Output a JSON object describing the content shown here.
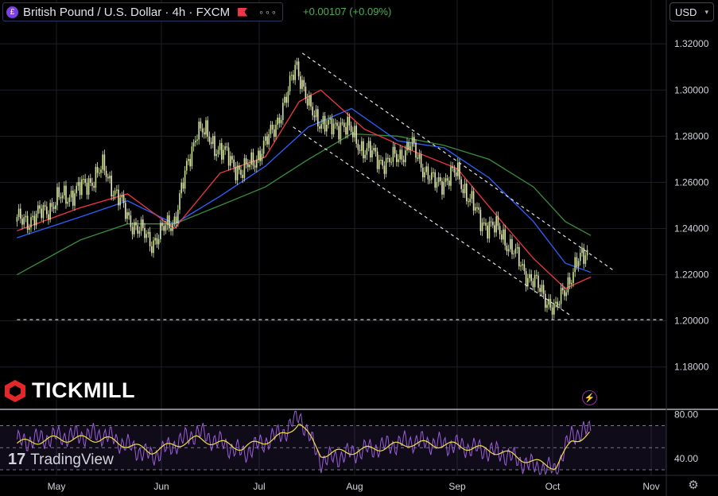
{
  "header": {
    "symbol_title": "British Pound / U.S. Dollar · 4h · FXCM",
    "symbol_icon": "pound-icon",
    "more_icon": "more-icon",
    "change": "+0.00107 (+0.09%)",
    "currency": "USD"
  },
  "branding": {
    "broker": "TICKMILL",
    "platform": "TradingView"
  },
  "colors": {
    "background": "#000000",
    "up_candle": "#c9e58c",
    "down_candle": "#e8e3b5",
    "ma_fast": "#f23645",
    "ma_mid": "#2962ff",
    "ma_slow": "#388e3c",
    "rsi_line": "#9c5ddb",
    "rsi_signal": "#f0e040",
    "change_text": "#4caf50"
  },
  "chart_data": [
    {
      "type": "line",
      "title": "British Pound / U.S. Dollar · 4h · FXCM",
      "x_axis": {
        "ticks": [
          "May",
          "Jun",
          "Jul",
          "Aug",
          "Sep",
          "Oct",
          "Nov"
        ]
      },
      "y_axis": {
        "ticks": [
          "1.32000",
          "1.30000",
          "1.28000",
          "1.26000",
          "1.24000",
          "1.22000",
          "1.20000",
          "1.18000"
        ],
        "range": [
          1.162,
          1.339
        ]
      },
      "series": [
        {
          "role": "close",
          "x": [
            "Apr 19",
            "Apr 25",
            "May 1",
            "May 8",
            "May 15",
            "May 22",
            "May 29",
            "Jun 5",
            "Jun 12",
            "Jun 19",
            "Jun 26",
            "Jul 3",
            "Jul 10",
            "Jul 13",
            "Jul 17",
            "Jul 24",
            "Jul 28",
            "Aug 4",
            "Aug 11",
            "Aug 18",
            "Aug 25",
            "Sep 1",
            "Sep 8",
            "Sep 15",
            "Sep 22",
            "Sep 29",
            "Oct 2",
            "Oct 5",
            "Oct 9",
            "Oct 12"
          ],
          "values": [
            1.243,
            1.245,
            1.252,
            1.257,
            1.266,
            1.245,
            1.234,
            1.244,
            1.284,
            1.274,
            1.264,
            1.276,
            1.296,
            1.313,
            1.292,
            1.283,
            1.286,
            1.274,
            1.268,
            1.276,
            1.259,
            1.264,
            1.244,
            1.238,
            1.222,
            1.21,
            1.204,
            1.215,
            1.225,
            1.231
          ]
        },
        {
          "role": "ma_fast",
          "x": [
            "Apr 19",
            "May 8",
            "May 22",
            "Jun 5",
            "Jun 19",
            "Jul 3",
            "Jul 14",
            "Jul 21",
            "Aug 4",
            "Aug 18",
            "Sep 1",
            "Sep 15",
            "Sep 25",
            "Oct 5",
            "Oct 13"
          ],
          "values": [
            1.239,
            1.249,
            1.255,
            1.24,
            1.264,
            1.271,
            1.295,
            1.3,
            1.283,
            1.274,
            1.266,
            1.243,
            1.227,
            1.214,
            1.219
          ]
        },
        {
          "role": "ma_mid",
          "x": [
            "Apr 19",
            "May 8",
            "May 22",
            "Jun 5",
            "Jun 19",
            "Jul 3",
            "Jul 17",
            "Jul 31",
            "Aug 14",
            "Aug 28",
            "Sep 11",
            "Sep 25",
            "Oct 5",
            "Oct 13"
          ],
          "values": [
            1.236,
            1.245,
            1.252,
            1.242,
            1.254,
            1.267,
            1.284,
            1.292,
            1.278,
            1.275,
            1.262,
            1.243,
            1.225,
            1.221
          ]
        },
        {
          "role": "ma_slow",
          "x": [
            "Apr 19",
            "May 8",
            "May 22",
            "Jun 5",
            "Jun 19",
            "Jul 3",
            "Jul 17",
            "Jul 31",
            "Aug 14",
            "Aug 28",
            "Sep 11",
            "Sep 25",
            "Oct 5",
            "Oct 13"
          ],
          "values": [
            1.22,
            1.235,
            1.242,
            1.242,
            1.25,
            1.258,
            1.27,
            1.281,
            1.28,
            1.276,
            1.27,
            1.258,
            1.243,
            1.237
          ]
        },
        {
          "role": "channel_upper",
          "x": [
            "Jul 15",
            "Oct 20"
          ],
          "values": [
            1.316,
            1.222
          ]
        },
        {
          "role": "channel_lower",
          "x": [
            "Jul 12",
            "Oct 7"
          ],
          "values": [
            1.284,
            1.202
          ]
        },
        {
          "role": "support",
          "x": [
            "Apr 19",
            "Nov 5"
          ],
          "values": [
            1.2005,
            1.2005
          ]
        }
      ],
      "grid": true
    },
    {
      "type": "line",
      "y_axis": {
        "ticks": [
          "80.00",
          "40.00"
        ],
        "range": [
          25,
          84
        ]
      },
      "bands": [
        70,
        30
      ],
      "series": [
        {
          "role": "rsi",
          "x": [
            "Apr 19",
            "May 1",
            "May 15",
            "May 29",
            "Jun 12",
            "Jun 26",
            "Jul 10",
            "Jul 14",
            "Jul 21",
            "Aug 4",
            "Aug 18",
            "Sep 1",
            "Sep 15",
            "Sep 25",
            "Oct 2",
            "Oct 7",
            "Oct 13"
          ],
          "values": [
            55,
            60,
            62,
            42,
            64,
            45,
            66,
            80,
            38,
            48,
            56,
            52,
            45,
            33,
            30,
            62,
            66
          ]
        },
        {
          "role": "rsi_ma",
          "x": [
            "Apr 19",
            "May 1",
            "May 15",
            "May 29",
            "Jun 12",
            "Jun 26",
            "Jul 10",
            "Jul 14",
            "Jul 21",
            "Aug 4",
            "Aug 18",
            "Sep 1",
            "Sep 15",
            "Sep 25",
            "Oct 2",
            "Oct 7",
            "Oct 13"
          ],
          "values": [
            54,
            58,
            58,
            47,
            58,
            50,
            62,
            74,
            44,
            48,
            54,
            52,
            46,
            37,
            33,
            55,
            64
          ]
        }
      ]
    }
  ]
}
